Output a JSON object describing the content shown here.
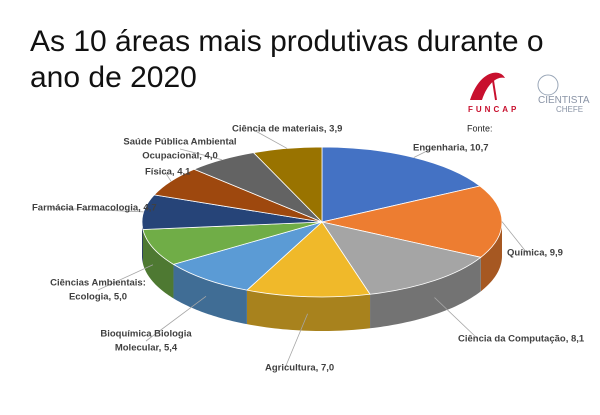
{
  "chart_data": {
    "type": "pie",
    "title": "As 10 áreas mais produtivas durante o ano de 2020",
    "values": [
      10.7,
      9.9,
      8.1,
      7.0,
      5.4,
      5.0,
      4.7,
      4.1,
      4.0,
      3.9
    ],
    "value_labels": [
      [
        "Engenharia, 10,7"
      ],
      [
        "Química, 9,9"
      ],
      [
        "Ciência da Computação, 8,1"
      ],
      [
        "Agricultura, 7,0"
      ],
      [
        "Bioquímica Biologia",
        "Molecular, 5,4"
      ],
      [
        "Ciências Ambientais:",
        "Ecologia, 5,0"
      ],
      [
        "Farmácia Farmacologia, 4,7"
      ],
      [
        "Física, 4,1"
      ],
      [
        "Saúde Pública Ambiental",
        "Ocupacional, 4,0"
      ],
      [
        "Ciência de materiais, 3,9"
      ]
    ],
    "colors": [
      "#4472c4",
      "#ed7d31",
      "#a5a5a5",
      "#f0b92a",
      "#5b9bd5",
      "#70ad47",
      "#264478",
      "#9e480e",
      "#636363",
      "#997300"
    ]
  },
  "logo": {
    "funcap": "FUNCAP",
    "cientista": "CIENTISTA",
    "chefe": "CHEFE",
    "source": "Fonte:"
  }
}
